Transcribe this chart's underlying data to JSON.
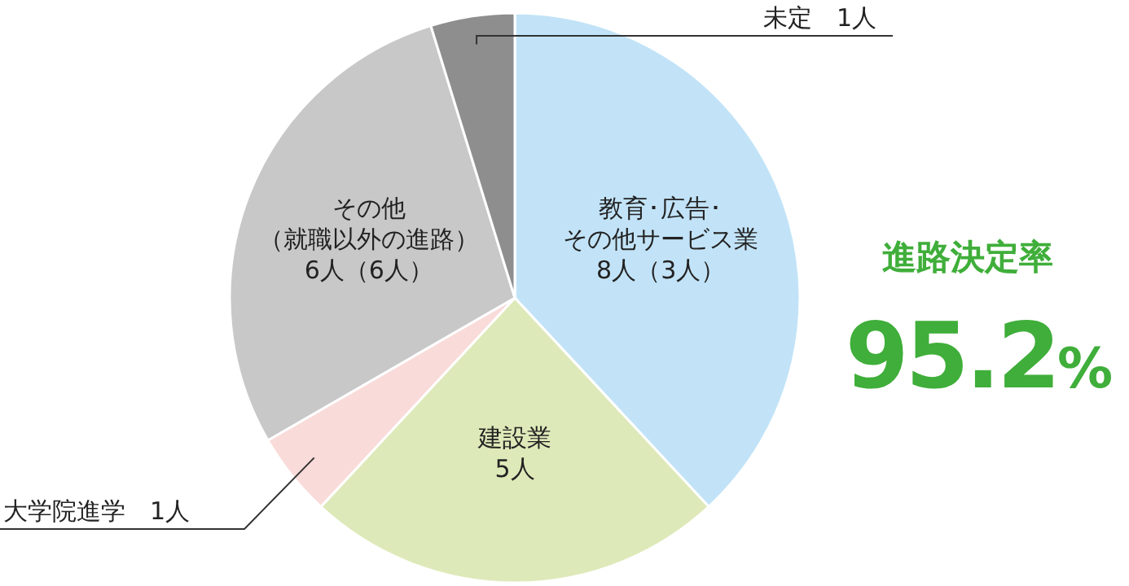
{
  "chart_data": {
    "type": "pie",
    "categories": [
      "教育･広告･その他サービス業",
      "建設業",
      "大学院進学",
      "その他（就職以外の進路）",
      "未定"
    ],
    "values": [
      8,
      5,
      1,
      6,
      1
    ],
    "value_labels": [
      "8人（3人）",
      "5人",
      "1人",
      "6人（6人）",
      "1人"
    ],
    "colors": [
      "#c2e3f7",
      "#dee9b9",
      "#f9dbd9",
      "#c8c8c8",
      "#8e8e8e"
    ],
    "annotations": [
      "進路決定率",
      "95.2%"
    ]
  }
}
